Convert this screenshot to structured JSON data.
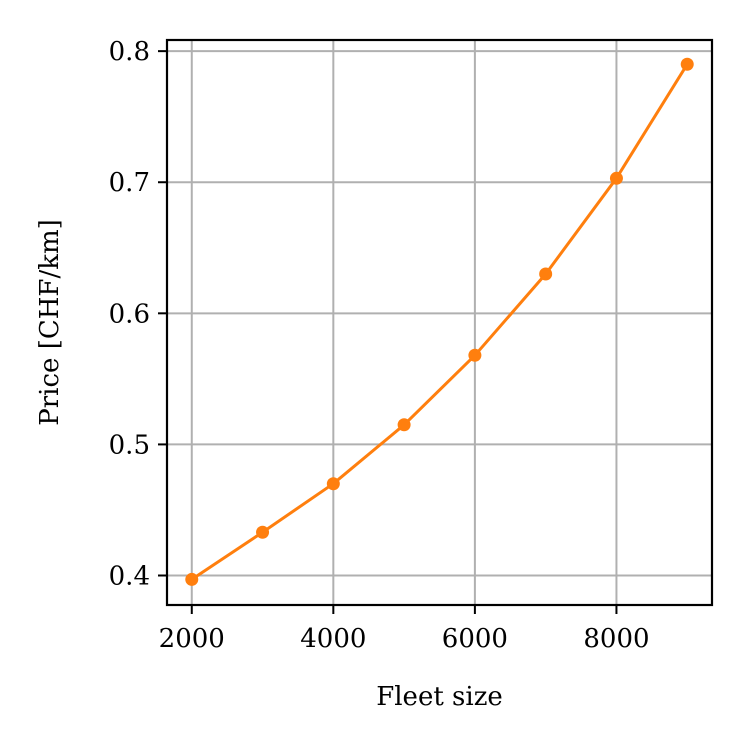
{
  "chart_data": {
    "type": "line",
    "xlabel": "Fleet size",
    "ylabel": "Price [CHF/km]",
    "xlim": [
      1650,
      9350
    ],
    "ylim": [
      0.3775,
      0.8085
    ],
    "xticks": [
      2000,
      4000,
      6000,
      8000
    ],
    "yticks": [
      0.4,
      0.5,
      0.6,
      0.7,
      0.8
    ],
    "xtick_labels": [
      "2000",
      "4000",
      "6000",
      "8000"
    ],
    "ytick_labels": [
      "0.4",
      "0.5",
      "0.6",
      "0.7",
      "0.8"
    ],
    "grid": true,
    "series": [
      {
        "color": "#ff7f0e",
        "marker": "circle",
        "x": [
          2000,
          3000,
          4000,
          5000,
          6000,
          7000,
          8000,
          9000
        ],
        "y": [
          0.397,
          0.433,
          0.47,
          0.515,
          0.568,
          0.63,
          0.703,
          0.79
        ]
      }
    ]
  }
}
